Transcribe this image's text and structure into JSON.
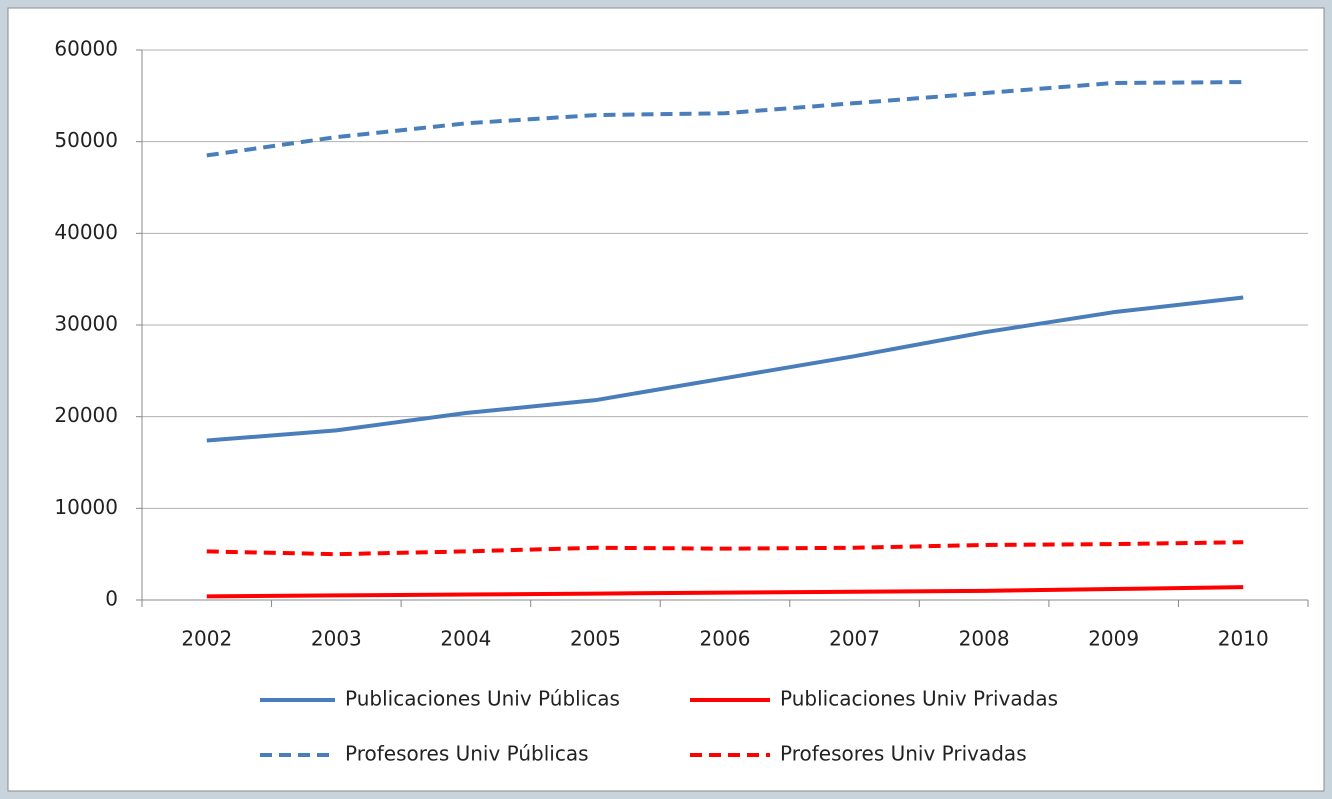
{
  "chart_data": {
    "type": "line",
    "categories": [
      "2002",
      "2003",
      "2004",
      "2005",
      "2006",
      "2007",
      "2008",
      "2009",
      "2010"
    ],
    "series": [
      {
        "name": "Publicaciones Univ Públicas",
        "color": "#4a7ebb",
        "dashed": false,
        "values": [
          17400,
          18500,
          20400,
          21800,
          24200,
          26600,
          29200,
          31400,
          33000
        ]
      },
      {
        "name": "Publicaciones Univ Privadas",
        "color": "#ff0000",
        "dashed": false,
        "values": [
          400,
          500,
          600,
          700,
          800,
          900,
          1000,
          1200,
          1400
        ]
      },
      {
        "name": "Profesores Univ Públicas",
        "color": "#4a7ebb",
        "dashed": true,
        "values": [
          48500,
          50500,
          52000,
          52900,
          53100,
          54200,
          55300,
          56400,
          56500
        ]
      },
      {
        "name": "Profesores Univ Privadas",
        "color": "#ff0000",
        "dashed": true,
        "values": [
          5300,
          5000,
          5300,
          5700,
          5600,
          5700,
          6000,
          6100,
          6300
        ]
      }
    ],
    "ylim": [
      0,
      60000
    ],
    "yticks": [
      0,
      10000,
      20000,
      30000,
      40000,
      50000,
      60000
    ],
    "grid": true,
    "legend": "bottom"
  }
}
